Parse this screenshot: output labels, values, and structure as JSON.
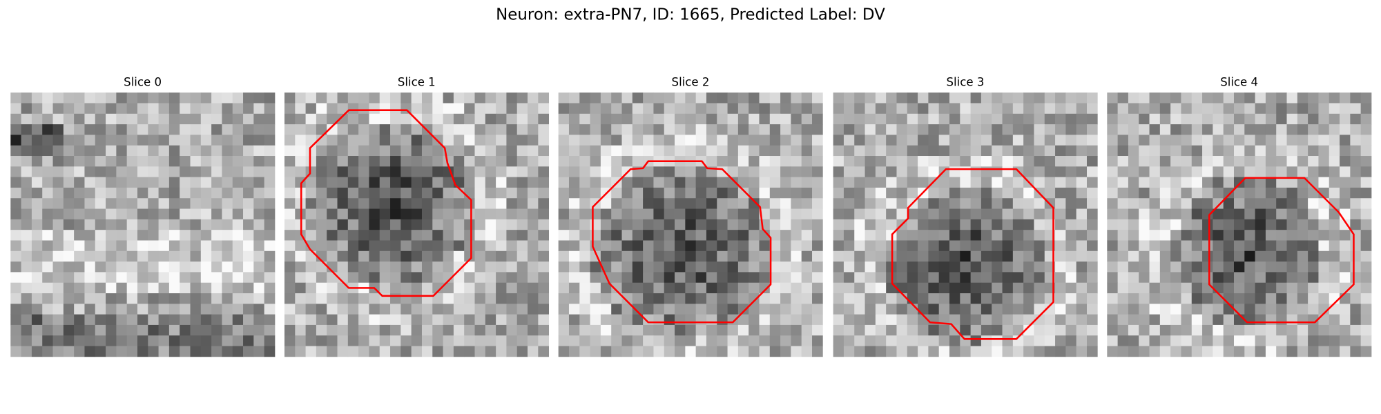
{
  "title": "Neuron: extra-PN7, ID: 1665, Predicted Label: DV",
  "panels": [
    {
      "title": "Slice 0"
    },
    {
      "title": "Slice 1"
    },
    {
      "title": "Slice 2"
    },
    {
      "title": "Slice 3"
    },
    {
      "title": "Slice 4"
    }
  ]
}
